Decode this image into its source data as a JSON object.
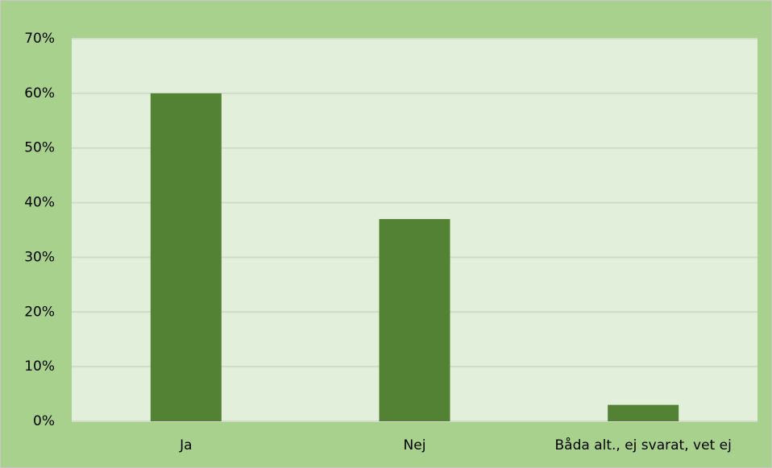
{
  "chart_data": {
    "type": "bar",
    "categories": [
      "Ja",
      "Nej",
      "Båda alt., ej svarat, vet ej"
    ],
    "values": [
      60,
      37,
      3
    ],
    "color": "#548235",
    "ylim": [
      0,
      70
    ],
    "yticks": [
      {
        "value": 0,
        "label": "0%"
      },
      {
        "value": 10,
        "label": "10%"
      },
      {
        "value": 20,
        "label": "20%"
      },
      {
        "value": 30,
        "label": "30%"
      },
      {
        "value": 40,
        "label": "40%"
      },
      {
        "value": 50,
        "label": "50%"
      },
      {
        "value": 60,
        "label": "60%"
      },
      {
        "value": 70,
        "label": "70%"
      }
    ],
    "grid": true
  }
}
